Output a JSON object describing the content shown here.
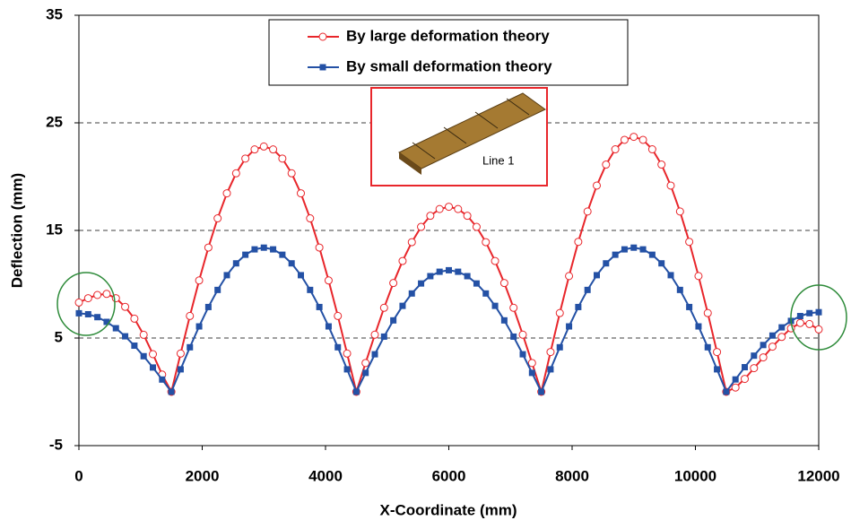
{
  "chart_data": {
    "type": "line",
    "xlabel": "X-Coordinate (mm)",
    "ylabel": "Deflection (mm)",
    "annotation": "Line 1",
    "x": [
      0,
      150,
      300,
      450,
      600,
      750,
      900,
      1050,
      1200,
      1350,
      1500,
      1650,
      1800,
      1950,
      2100,
      2250,
      2400,
      2550,
      2700,
      2850,
      3000,
      3150,
      3300,
      3450,
      3600,
      3750,
      3900,
      4050,
      4200,
      4350,
      4500,
      4650,
      4800,
      4950,
      5100,
      5250,
      5400,
      5550,
      5700,
      5850,
      6000,
      6150,
      6300,
      6450,
      6600,
      6750,
      6900,
      7050,
      7200,
      7350,
      7500,
      7650,
      7800,
      7950,
      8100,
      8250,
      8400,
      8550,
      8700,
      8850,
      9000,
      9150,
      9300,
      9450,
      9600,
      9750,
      9900,
      10050,
      10200,
      10350,
      10500,
      10650,
      10800,
      10950,
      11100,
      11250,
      11400,
      11550,
      11700,
      11850,
      12000
    ],
    "series": [
      {
        "name": "By large deformation theory",
        "color": "#e8262b",
        "values": [
          8.3,
          8.7,
          9.0,
          9.1,
          8.7,
          7.9,
          6.8,
          5.3,
          3.5,
          1.6,
          0,
          3.56,
          7.05,
          10.35,
          13.41,
          16.12,
          18.45,
          20.31,
          21.68,
          22.53,
          22.8,
          22.53,
          21.68,
          20.31,
          18.45,
          16.12,
          13.41,
          10.35,
          7.05,
          3.56,
          0,
          2.68,
          5.31,
          7.81,
          10.11,
          12.16,
          13.91,
          15.33,
          16.36,
          16.99,
          17.2,
          16.99,
          16.36,
          15.33,
          13.91,
          12.16,
          10.11,
          7.81,
          5.31,
          2.68,
          0,
          3.7,
          7.32,
          10.76,
          13.94,
          16.76,
          19.17,
          21.12,
          22.54,
          23.42,
          23.7,
          23.42,
          22.54,
          21.12,
          19.17,
          16.76,
          13.94,
          10.76,
          7.32,
          3.7,
          0,
          0.4,
          1.2,
          2.2,
          3.2,
          4.2,
          5.1,
          5.9,
          6.4,
          6.3,
          5.8
        ]
      },
      {
        "name": "By small deformation theory",
        "color": "#2451a5",
        "values": [
          7.3,
          7.21,
          6.94,
          6.5,
          5.91,
          5.16,
          4.29,
          3.31,
          2.26,
          1.14,
          0,
          2.09,
          4.14,
          6.08,
          7.88,
          9.47,
          10.84,
          11.94,
          12.74,
          13.24,
          13.4,
          13.24,
          12.74,
          11.94,
          10.84,
          9.47,
          7.88,
          6.08,
          4.14,
          2.09,
          0,
          1.76,
          3.49,
          5.13,
          6.64,
          7.99,
          9.14,
          10.07,
          10.75,
          11.16,
          11.3,
          11.16,
          10.75,
          10.07,
          9.14,
          7.99,
          6.64,
          5.13,
          3.49,
          1.76,
          0,
          2.09,
          4.14,
          6.08,
          7.88,
          9.47,
          10.84,
          11.94,
          12.74,
          13.24,
          13.4,
          13.24,
          12.74,
          11.94,
          10.84,
          9.47,
          7.88,
          6.08,
          4.14,
          2.09,
          0,
          1.15,
          2.29,
          3.36,
          4.35,
          5.23,
          5.99,
          6.59,
          7.04,
          7.31,
          7.4
        ]
      }
    ],
    "xlim": [
      0,
      12000
    ],
    "xticks": [
      0,
      2000,
      4000,
      6000,
      8000,
      10000,
      12000
    ],
    "ylim": [
      -5,
      35
    ],
    "yticks": [
      -5,
      5,
      15,
      25,
      35
    ],
    "grid": true
  }
}
